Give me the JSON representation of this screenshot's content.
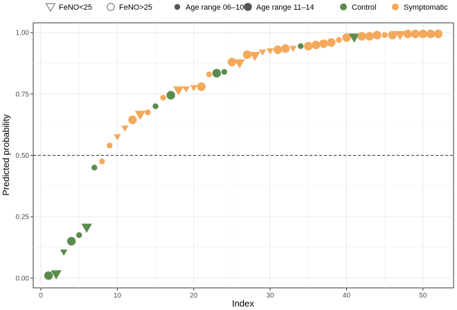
{
  "chart_data": {
    "type": "scatter",
    "xlabel": "Index",
    "ylabel": "Predicted probability",
    "xlim": [
      -1,
      54
    ],
    "ylim": [
      -0.04,
      1.04
    ],
    "x_ticks": [
      0,
      10,
      20,
      30,
      40,
      50
    ],
    "y_ticks": [
      0.0,
      0.25,
      0.5,
      0.75,
      1.0
    ],
    "y_tick_labels": [
      "0.00",
      "0.25",
      "0.50",
      "0.75",
      "1.00"
    ],
    "grid": true,
    "threshold": 0.5,
    "colors": {
      "Control": "#5b8c4e",
      "Symptomatic": "#f5a95c"
    },
    "legend": {
      "position": "top",
      "shape_entries": [
        {
          "label": "FeNO<25",
          "shape": "triangle-down"
        },
        {
          "label": "FeNO>25",
          "shape": "circle"
        }
      ],
      "size_entries": [
        {
          "label": "Age range 06–10",
          "size": "small"
        },
        {
          "label": "Age range 11–14",
          "size": "large"
        }
      ],
      "color_entries": [
        {
          "label": "Control",
          "color": "#5b8c4e"
        },
        {
          "label": "Symptomatic",
          "color": "#f5a95c"
        }
      ]
    },
    "points": [
      {
        "x": 1,
        "y": 0.01,
        "group": "Control",
        "feno": "FeNO>25",
        "age": "Age range 11–14"
      },
      {
        "x": 2,
        "y": 0.015,
        "group": "Control",
        "feno": "FeNO<25",
        "age": "Age range 11–14"
      },
      {
        "x": 3,
        "y": 0.105,
        "group": "Control",
        "feno": "FeNO<25",
        "age": "Age range 06–10"
      },
      {
        "x": 4,
        "y": 0.15,
        "group": "Control",
        "feno": "FeNO>25",
        "age": "Age range 11–14"
      },
      {
        "x": 5,
        "y": 0.175,
        "group": "Control",
        "feno": "FeNO>25",
        "age": "Age range 06–10"
      },
      {
        "x": 6,
        "y": 0.205,
        "group": "Control",
        "feno": "FeNO<25",
        "age": "Age range 11–14"
      },
      {
        "x": 7,
        "y": 0.45,
        "group": "Control",
        "feno": "FeNO>25",
        "age": "Age range 06–10"
      },
      {
        "x": 8,
        "y": 0.475,
        "group": "Symptomatic",
        "feno": "FeNO>25",
        "age": "Age range 06–10"
      },
      {
        "x": 9,
        "y": 0.54,
        "group": "Symptomatic",
        "feno": "FeNO>25",
        "age": "Age range 06–10"
      },
      {
        "x": 10,
        "y": 0.575,
        "group": "Symptomatic",
        "feno": "FeNO<25",
        "age": "Age range 06–10"
      },
      {
        "x": 11,
        "y": 0.61,
        "group": "Symptomatic",
        "feno": "FeNO<25",
        "age": "Age range 06–10"
      },
      {
        "x": 12,
        "y": 0.645,
        "group": "Symptomatic",
        "feno": "FeNO>25",
        "age": "Age range 11–14"
      },
      {
        "x": 13,
        "y": 0.665,
        "group": "Symptomatic",
        "feno": "FeNO<25",
        "age": "Age range 11–14"
      },
      {
        "x": 14,
        "y": 0.675,
        "group": "Symptomatic",
        "feno": "FeNO>25",
        "age": "Age range 06–10"
      },
      {
        "x": 15,
        "y": 0.7,
        "group": "Control",
        "feno": "FeNO>25",
        "age": "Age range 06–10"
      },
      {
        "x": 16,
        "y": 0.735,
        "group": "Symptomatic",
        "feno": "FeNO>25",
        "age": "Age range 06–10"
      },
      {
        "x": 17,
        "y": 0.745,
        "group": "Control",
        "feno": "FeNO>25",
        "age": "Age range 11–14"
      },
      {
        "x": 18,
        "y": 0.765,
        "group": "Symptomatic",
        "feno": "FeNO<25",
        "age": "Age range 11–14"
      },
      {
        "x": 19,
        "y": 0.77,
        "group": "Symptomatic",
        "feno": "FeNO<25",
        "age": "Age range 06–10"
      },
      {
        "x": 20,
        "y": 0.775,
        "group": "Symptomatic",
        "feno": "FeNO<25",
        "age": "Age range 06–10"
      },
      {
        "x": 21,
        "y": 0.78,
        "group": "Symptomatic",
        "feno": "FeNO>25",
        "age": "Age range 11–14"
      },
      {
        "x": 22,
        "y": 0.83,
        "group": "Symptomatic",
        "feno": "FeNO>25",
        "age": "Age range 06–10"
      },
      {
        "x": 23,
        "y": 0.835,
        "group": "Control",
        "feno": "FeNO>25",
        "age": "Age range 11–14"
      },
      {
        "x": 24,
        "y": 0.84,
        "group": "Control",
        "feno": "FeNO>25",
        "age": "Age range 06–10"
      },
      {
        "x": 25,
        "y": 0.88,
        "group": "Symptomatic",
        "feno": "FeNO>25",
        "age": "Age range 11–14"
      },
      {
        "x": 26,
        "y": 0.875,
        "group": "Symptomatic",
        "feno": "FeNO<25",
        "age": "Age range 11–14"
      },
      {
        "x": 27,
        "y": 0.91,
        "group": "Symptomatic",
        "feno": "FeNO>25",
        "age": "Age range 11–14"
      },
      {
        "x": 28,
        "y": 0.905,
        "group": "Symptomatic",
        "feno": "FeNO<25",
        "age": "Age range 11–14"
      },
      {
        "x": 29,
        "y": 0.92,
        "group": "Symptomatic",
        "feno": "FeNO<25",
        "age": "Age range 06–10"
      },
      {
        "x": 30,
        "y": 0.925,
        "group": "Symptomatic",
        "feno": "FeNO<25",
        "age": "Age range 06–10"
      },
      {
        "x": 31,
        "y": 0.93,
        "group": "Symptomatic",
        "feno": "FeNO>25",
        "age": "Age range 11–14"
      },
      {
        "x": 32,
        "y": 0.935,
        "group": "Symptomatic",
        "feno": "FeNO>25",
        "age": "Age range 11–14"
      },
      {
        "x": 33,
        "y": 0.935,
        "group": "Symptomatic",
        "feno": "FeNO<25",
        "age": "Age range 06–10"
      },
      {
        "x": 34,
        "y": 0.945,
        "group": "Control",
        "feno": "FeNO>25",
        "age": "Age range 06–10"
      },
      {
        "x": 35,
        "y": 0.945,
        "group": "Symptomatic",
        "feno": "FeNO>25",
        "age": "Age range 11–14"
      },
      {
        "x": 36,
        "y": 0.95,
        "group": "Symptomatic",
        "feno": "FeNO>25",
        "age": "Age range 11–14"
      },
      {
        "x": 37,
        "y": 0.955,
        "group": "Symptomatic",
        "feno": "FeNO>25",
        "age": "Age range 11–14"
      },
      {
        "x": 38,
        "y": 0.96,
        "group": "Symptomatic",
        "feno": "FeNO>25",
        "age": "Age range 11–14"
      },
      {
        "x": 39,
        "y": 0.97,
        "group": "Symptomatic",
        "feno": "FeNO>25",
        "age": "Age range 06–10"
      },
      {
        "x": 40,
        "y": 0.98,
        "group": "Symptomatic",
        "feno": "FeNO>25",
        "age": "Age range 11–14"
      },
      {
        "x": 41,
        "y": 0.98,
        "group": "Control",
        "feno": "FeNO<25",
        "age": "Age range 11–14"
      },
      {
        "x": 42,
        "y": 0.985,
        "group": "Symptomatic",
        "feno": "FeNO>25",
        "age": "Age range 11–14"
      },
      {
        "x": 43,
        "y": 0.985,
        "group": "Symptomatic",
        "feno": "FeNO>25",
        "age": "Age range 11–14"
      },
      {
        "x": 44,
        "y": 0.99,
        "group": "Symptomatic",
        "feno": "FeNO>25",
        "age": "Age range 11–14"
      },
      {
        "x": 45,
        "y": 0.99,
        "group": "Symptomatic",
        "feno": "FeNO>25",
        "age": "Age range 06–10"
      },
      {
        "x": 46,
        "y": 0.99,
        "group": "Symptomatic",
        "feno": "FeNO>25",
        "age": "Age range 11–14"
      },
      {
        "x": 47,
        "y": 0.99,
        "group": "Symptomatic",
        "feno": "FeNO<25",
        "age": "Age range 11–14"
      },
      {
        "x": 48,
        "y": 0.995,
        "group": "Symptomatic",
        "feno": "FeNO>25",
        "age": "Age range 11–14"
      },
      {
        "x": 49,
        "y": 0.995,
        "group": "Symptomatic",
        "feno": "FeNO>25",
        "age": "Age range 11–14"
      },
      {
        "x": 50,
        "y": 0.995,
        "group": "Symptomatic",
        "feno": "FeNO>25",
        "age": "Age range 11–14"
      },
      {
        "x": 51,
        "y": 0.995,
        "group": "Symptomatic",
        "feno": "FeNO>25",
        "age": "Age range 11–14"
      },
      {
        "x": 52,
        "y": 0.995,
        "group": "Symptomatic",
        "feno": "FeNO>25",
        "age": "Age range 11–14"
      }
    ]
  }
}
